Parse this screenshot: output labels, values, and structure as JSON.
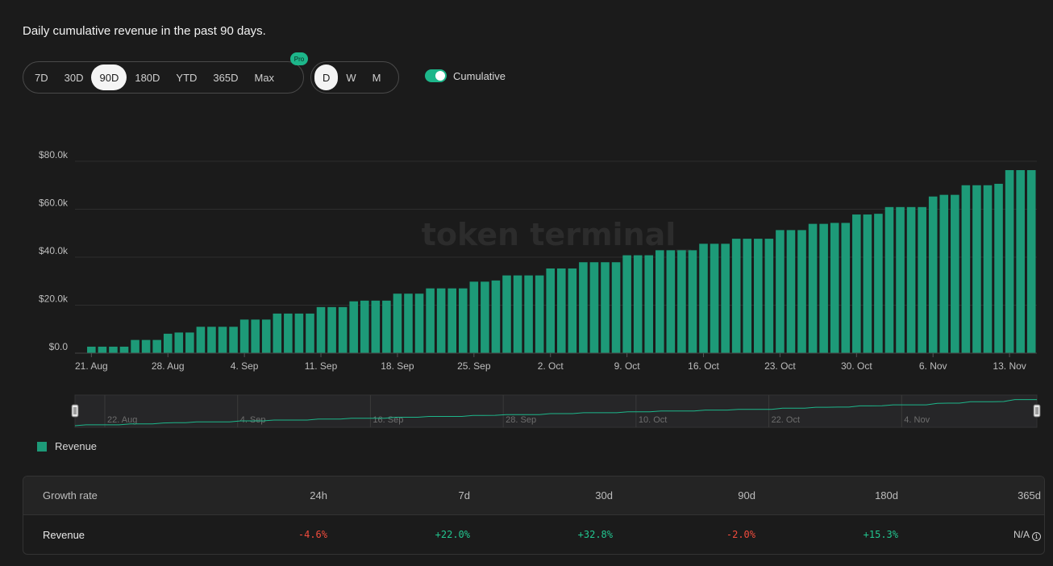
{
  "title": "Daily cumulative revenue in the past 90 days.",
  "range_tabs": [
    {
      "label": "7D",
      "active": false
    },
    {
      "label": "30D",
      "active": false
    },
    {
      "label": "90D",
      "active": true
    },
    {
      "label": "180D",
      "active": false
    },
    {
      "label": "YTD",
      "active": false
    },
    {
      "label": "365D",
      "active": false
    },
    {
      "label": "Max",
      "active": false
    }
  ],
  "pro_badge": "Pro",
  "granularity_tabs": [
    {
      "label": "D",
      "active": true
    },
    {
      "label": "W",
      "active": false
    },
    {
      "label": "M",
      "active": false
    }
  ],
  "cumulative_toggle": {
    "label": "Cumulative",
    "on": true
  },
  "watermark": "token terminal_",
  "colors": {
    "bar": "#1d9a78",
    "accent": "#1db68a",
    "negative": "#f24c3d",
    "positive": "#22c58f"
  },
  "chart_data": {
    "type": "bar",
    "series_name": "Revenue",
    "ylim": [
      0,
      80000
    ],
    "y_ticks": [
      {
        "value": 0,
        "label": "$0.0"
      },
      {
        "value": 20000,
        "label": "$20.0k"
      },
      {
        "value": 40000,
        "label": "$40.0k"
      },
      {
        "value": 60000,
        "label": "$60.0k"
      },
      {
        "value": 80000,
        "label": "$80.0k"
      }
    ],
    "x_ticks": [
      {
        "index": 1,
        "label": "21. Aug"
      },
      {
        "index": 8,
        "label": "28. Aug"
      },
      {
        "index": 15,
        "label": "4. Sep"
      },
      {
        "index": 22,
        "label": "11. Sep"
      },
      {
        "index": 29,
        "label": "18. Sep"
      },
      {
        "index": 36,
        "label": "25. Sep"
      },
      {
        "index": 43,
        "label": "2. Oct"
      },
      {
        "index": 50,
        "label": "9. Oct"
      },
      {
        "index": 57,
        "label": "16. Oct"
      },
      {
        "index": 64,
        "label": "23. Oct"
      },
      {
        "index": 71,
        "label": "30. Oct"
      },
      {
        "index": 78,
        "label": "6. Nov"
      },
      {
        "index": 85,
        "label": "13. Nov"
      }
    ],
    "values": [
      0,
      2700,
      2700,
      2700,
      2700,
      5500,
      5500,
      5500,
      8100,
      8600,
      8600,
      11000,
      11000,
      11000,
      11000,
      14000,
      14000,
      14000,
      16500,
      16500,
      16500,
      16500,
      19200,
      19200,
      19200,
      21600,
      21900,
      21900,
      21900,
      24800,
      24800,
      24800,
      27000,
      27000,
      27000,
      27000,
      29800,
      29800,
      30300,
      32400,
      32400,
      32400,
      32400,
      35300,
      35300,
      35300,
      37900,
      37900,
      37900,
      37900,
      40800,
      40800,
      40800,
      42900,
      42900,
      42900,
      42900,
      45600,
      45600,
      45600,
      47700,
      47700,
      47700,
      47700,
      51300,
      51300,
      51300,
      53900,
      53900,
      54300,
      54300,
      57800,
      57800,
      58100,
      60900,
      60900,
      60900,
      60900,
      65300,
      66000,
      66000,
      70000,
      70000,
      70000,
      70600,
      76300,
      76300,
      76300
    ]
  },
  "navigator": {
    "labels": [
      "22. Aug",
      "4. Sep",
      "16. Sep",
      "28. Sep",
      "10. Oct",
      "22. Oct",
      "4. Nov"
    ]
  },
  "legend": {
    "label": "Revenue"
  },
  "growth_table": {
    "header": {
      "label": "Growth rate",
      "periods": [
        "24h",
        "7d",
        "30d",
        "90d",
        "180d",
        "365d"
      ]
    },
    "rows": [
      {
        "label": "Revenue",
        "values": [
          {
            "text": "-4.6%",
            "tone": "neg"
          },
          {
            "text": "+22.0%",
            "tone": "pos"
          },
          {
            "text": "+32.8%",
            "tone": "pos"
          },
          {
            "text": "-2.0%",
            "tone": "neg"
          },
          {
            "text": "+15.3%",
            "tone": "pos"
          },
          {
            "text": "N/A",
            "tone": "na"
          }
        ]
      }
    ]
  }
}
